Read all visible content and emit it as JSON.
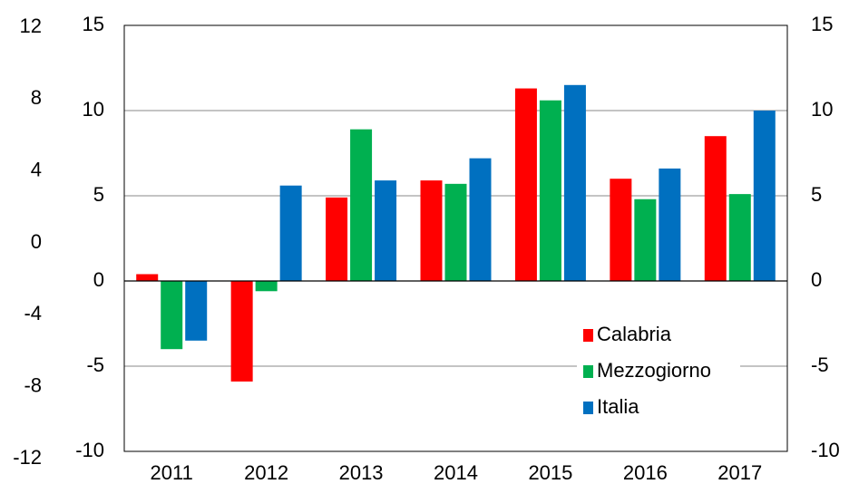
{
  "chart_data": {
    "type": "bar",
    "categories": [
      "2011",
      "2012",
      "2013",
      "2014",
      "2015",
      "2016",
      "2017"
    ],
    "series": [
      {
        "name": "Calabria",
        "color": "#ff0000",
        "values": [
          0.4,
          -5.9,
          4.9,
          5.9,
          11.3,
          6.0,
          8.5
        ]
      },
      {
        "name": "Mezzogiorno",
        "color": "#00b050",
        "values": [
          -4.0,
          -0.6,
          8.9,
          5.7,
          10.6,
          4.8,
          5.1
        ]
      },
      {
        "name": "Italia",
        "color": "#0070c0",
        "values": [
          -3.5,
          5.6,
          5.9,
          7.2,
          11.5,
          6.6,
          10.0
        ]
      }
    ],
    "ylim": [
      -10,
      15
    ],
    "yticks": [
      -10,
      -5,
      0,
      5,
      10,
      15
    ],
    "y2lim": [
      -10,
      15
    ],
    "y2ticks": [
      -10,
      -5,
      0,
      5,
      10,
      15
    ],
    "y3lim": [
      -12,
      12
    ],
    "y3ticks": [
      -12,
      -8,
      -4,
      0,
      4,
      8,
      12
    ],
    "grid": true,
    "legend": "lower right"
  }
}
